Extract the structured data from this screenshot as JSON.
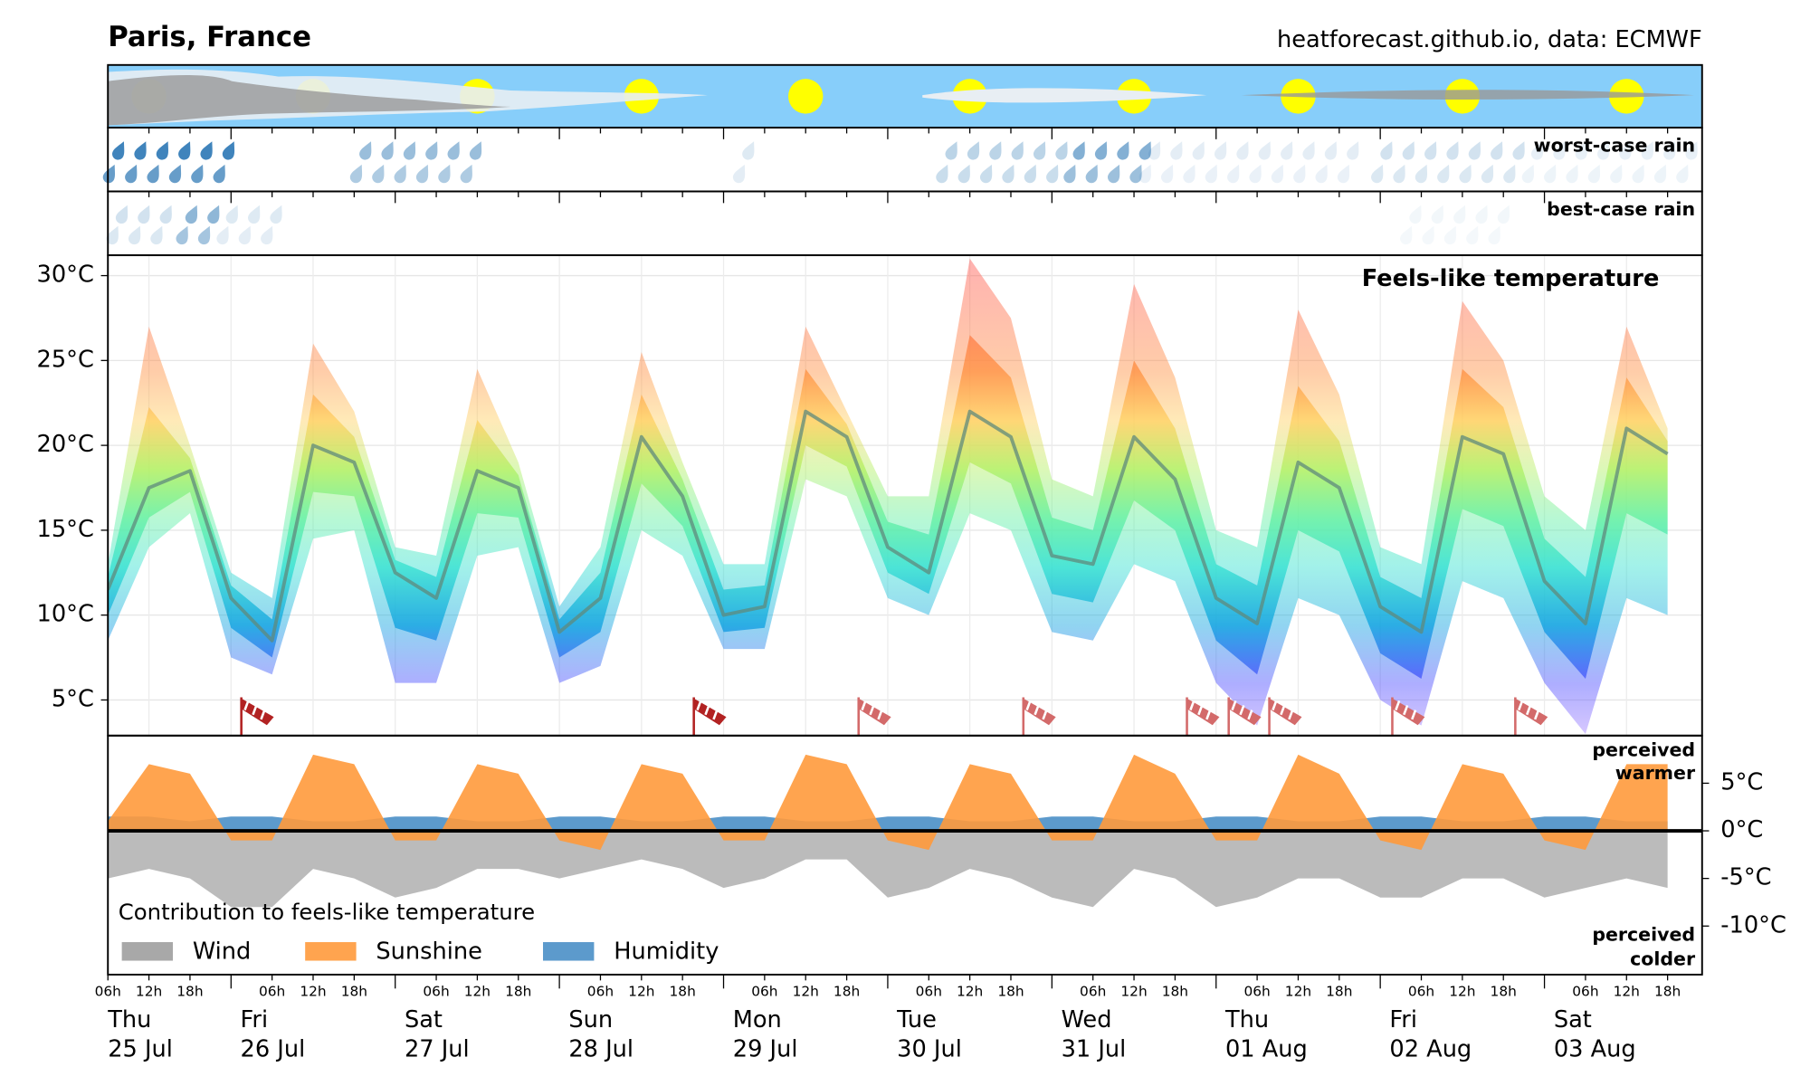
{
  "header": {
    "title": "Paris, France",
    "source": "heatforecast.github.io, data: ECMWF"
  },
  "rain_panels": {
    "worst": "worst-case rain",
    "best": "best-case rain"
  },
  "time_axis": {
    "categories": [
      "06h",
      "12h",
      "18h",
      null,
      "06h",
      "12h",
      "18h",
      null,
      "06h",
      "12h",
      "18h",
      null,
      "06h",
      "12h",
      "18h",
      null,
      "06h",
      "12h",
      "18h",
      null,
      "06h",
      "12h",
      "18h",
      null,
      "06h",
      "12h",
      "18h",
      null,
      "06h",
      "12h",
      "18h",
      null,
      "06h",
      "12h",
      "18h",
      null,
      "06h",
      "12h",
      "18h"
    ],
    "days": [
      {
        "weekday": "Thu",
        "date": "25 Jul"
      },
      {
        "weekday": "Fri",
        "date": "26 Jul"
      },
      {
        "weekday": "Sat",
        "date": "27 Jul"
      },
      {
        "weekday": "Sun",
        "date": "28 Jul"
      },
      {
        "weekday": "Mon",
        "date": "29 Jul"
      },
      {
        "weekday": "Tue",
        "date": "30 Jul"
      },
      {
        "weekday": "Wed",
        "date": "31 Jul"
      },
      {
        "weekday": "Thu",
        "date": "01 Aug"
      },
      {
        "weekday": "Fri",
        "date": "02 Aug"
      },
      {
        "weekday": "Sat",
        "date": "03 Aug"
      }
    ]
  },
  "chart_data": [
    {
      "type": "line",
      "title": "Feels-like temperature",
      "color": "#5f8a7c",
      "grid": true,
      "values": [
        11.5,
        17.5,
        18.5,
        11,
        8.5,
        20,
        19,
        12.5,
        11,
        18.5,
        17.5,
        9,
        11,
        20.5,
        17,
        10,
        10.5,
        22,
        20.5,
        14,
        12.5,
        22,
        20.5,
        13.5,
        13,
        20.5,
        18,
        11,
        9.5,
        19,
        17.5,
        10.5,
        9,
        20.5,
        19.5,
        12,
        9.5,
        21,
        19.5
      ],
      "range_high": [
        13,
        27,
        20,
        12.5,
        11,
        26,
        22,
        14,
        13.5,
        24.5,
        19,
        10.5,
        14,
        25.5,
        19,
        13,
        13,
        27,
        22,
        17,
        17,
        31,
        27.5,
        18,
        17,
        29.5,
        24,
        15,
        14,
        28,
        23,
        14,
        13,
        28.5,
        25,
        17,
        15,
        27,
        21
      ],
      "range_low": [
        8.5,
        14,
        16,
        7.5,
        6.5,
        14.5,
        15,
        6,
        6,
        13.5,
        14,
        6,
        7,
        15,
        13.5,
        8,
        8,
        18,
        17,
        11,
        10,
        16,
        15,
        9,
        8.5,
        13,
        12,
        6,
        3.5,
        11,
        10,
        5,
        3.5,
        12,
        11,
        6,
        3,
        11,
        10
      ],
      "ylim": [
        2.9,
        31.2
      ],
      "yticks": [
        {
          "value": 5,
          "label": "5°C"
        },
        {
          "value": 10,
          "label": "10°C"
        },
        {
          "value": 15,
          "label": "15°C"
        },
        {
          "value": 20,
          "label": "20°C"
        },
        {
          "value": 25,
          "label": "25°C"
        },
        {
          "value": 30,
          "label": "30°C"
        }
      ]
    },
    {
      "type": "area",
      "title": "Contribution to feels-like temperature",
      "warmer_label": [
        "perceived",
        "warmer"
      ],
      "colder_label": [
        "perceived",
        "colder"
      ],
      "series": [
        {
          "name": "Wind",
          "color": "#9e9e9e",
          "values": [
            -5,
            -4,
            -5,
            -8,
            -8,
            -4,
            -5,
            -7,
            -6,
            -4,
            -4,
            -5,
            -4,
            -3,
            -4,
            -6,
            -5,
            -3,
            -3,
            -7,
            -6,
            -4,
            -5,
            -7,
            -8,
            -4,
            -5,
            -8,
            -7,
            -5,
            -5,
            -7,
            -7,
            -5,
            -5,
            -7,
            -6,
            -5,
            -6
          ]
        },
        {
          "name": "Sunshine",
          "color": "#ff9a3c",
          "values": [
            1,
            7,
            6,
            -1,
            -1,
            8,
            7,
            -1,
            -1,
            7,
            6,
            -1,
            -2,
            7,
            6,
            -1,
            -1,
            8,
            7,
            -1,
            -2,
            7,
            6,
            -1,
            -1,
            8,
            6,
            -1,
            -1,
            8,
            6,
            -1,
            -2,
            7,
            6,
            -1,
            -2,
            7,
            7
          ]
        },
        {
          "name": "Humidity",
          "color": "#4a8fc7",
          "values": [
            1.5,
            1.5,
            1,
            1.5,
            1.5,
            1,
            1,
            1.5,
            1.5,
            1,
            1,
            1.5,
            1.5,
            1,
            1,
            1.5,
            1.5,
            1,
            1,
            1.5,
            1.5,
            1,
            1,
            1.5,
            1.5,
            1,
            1,
            1.5,
            1.5,
            1,
            1,
            1.5,
            1.5,
            1,
            1,
            1.5,
            1.5,
            1,
            1
          ]
        }
      ],
      "ylim": [
        -15.1,
        10
      ],
      "yticks": [
        {
          "value": 5,
          "label": "5°C"
        },
        {
          "value": 0,
          "label": "0°C"
        },
        {
          "value": -5,
          "label": "-5°C"
        },
        {
          "value": -10,
          "label": "-10°C"
        }
      ]
    }
  ]
}
